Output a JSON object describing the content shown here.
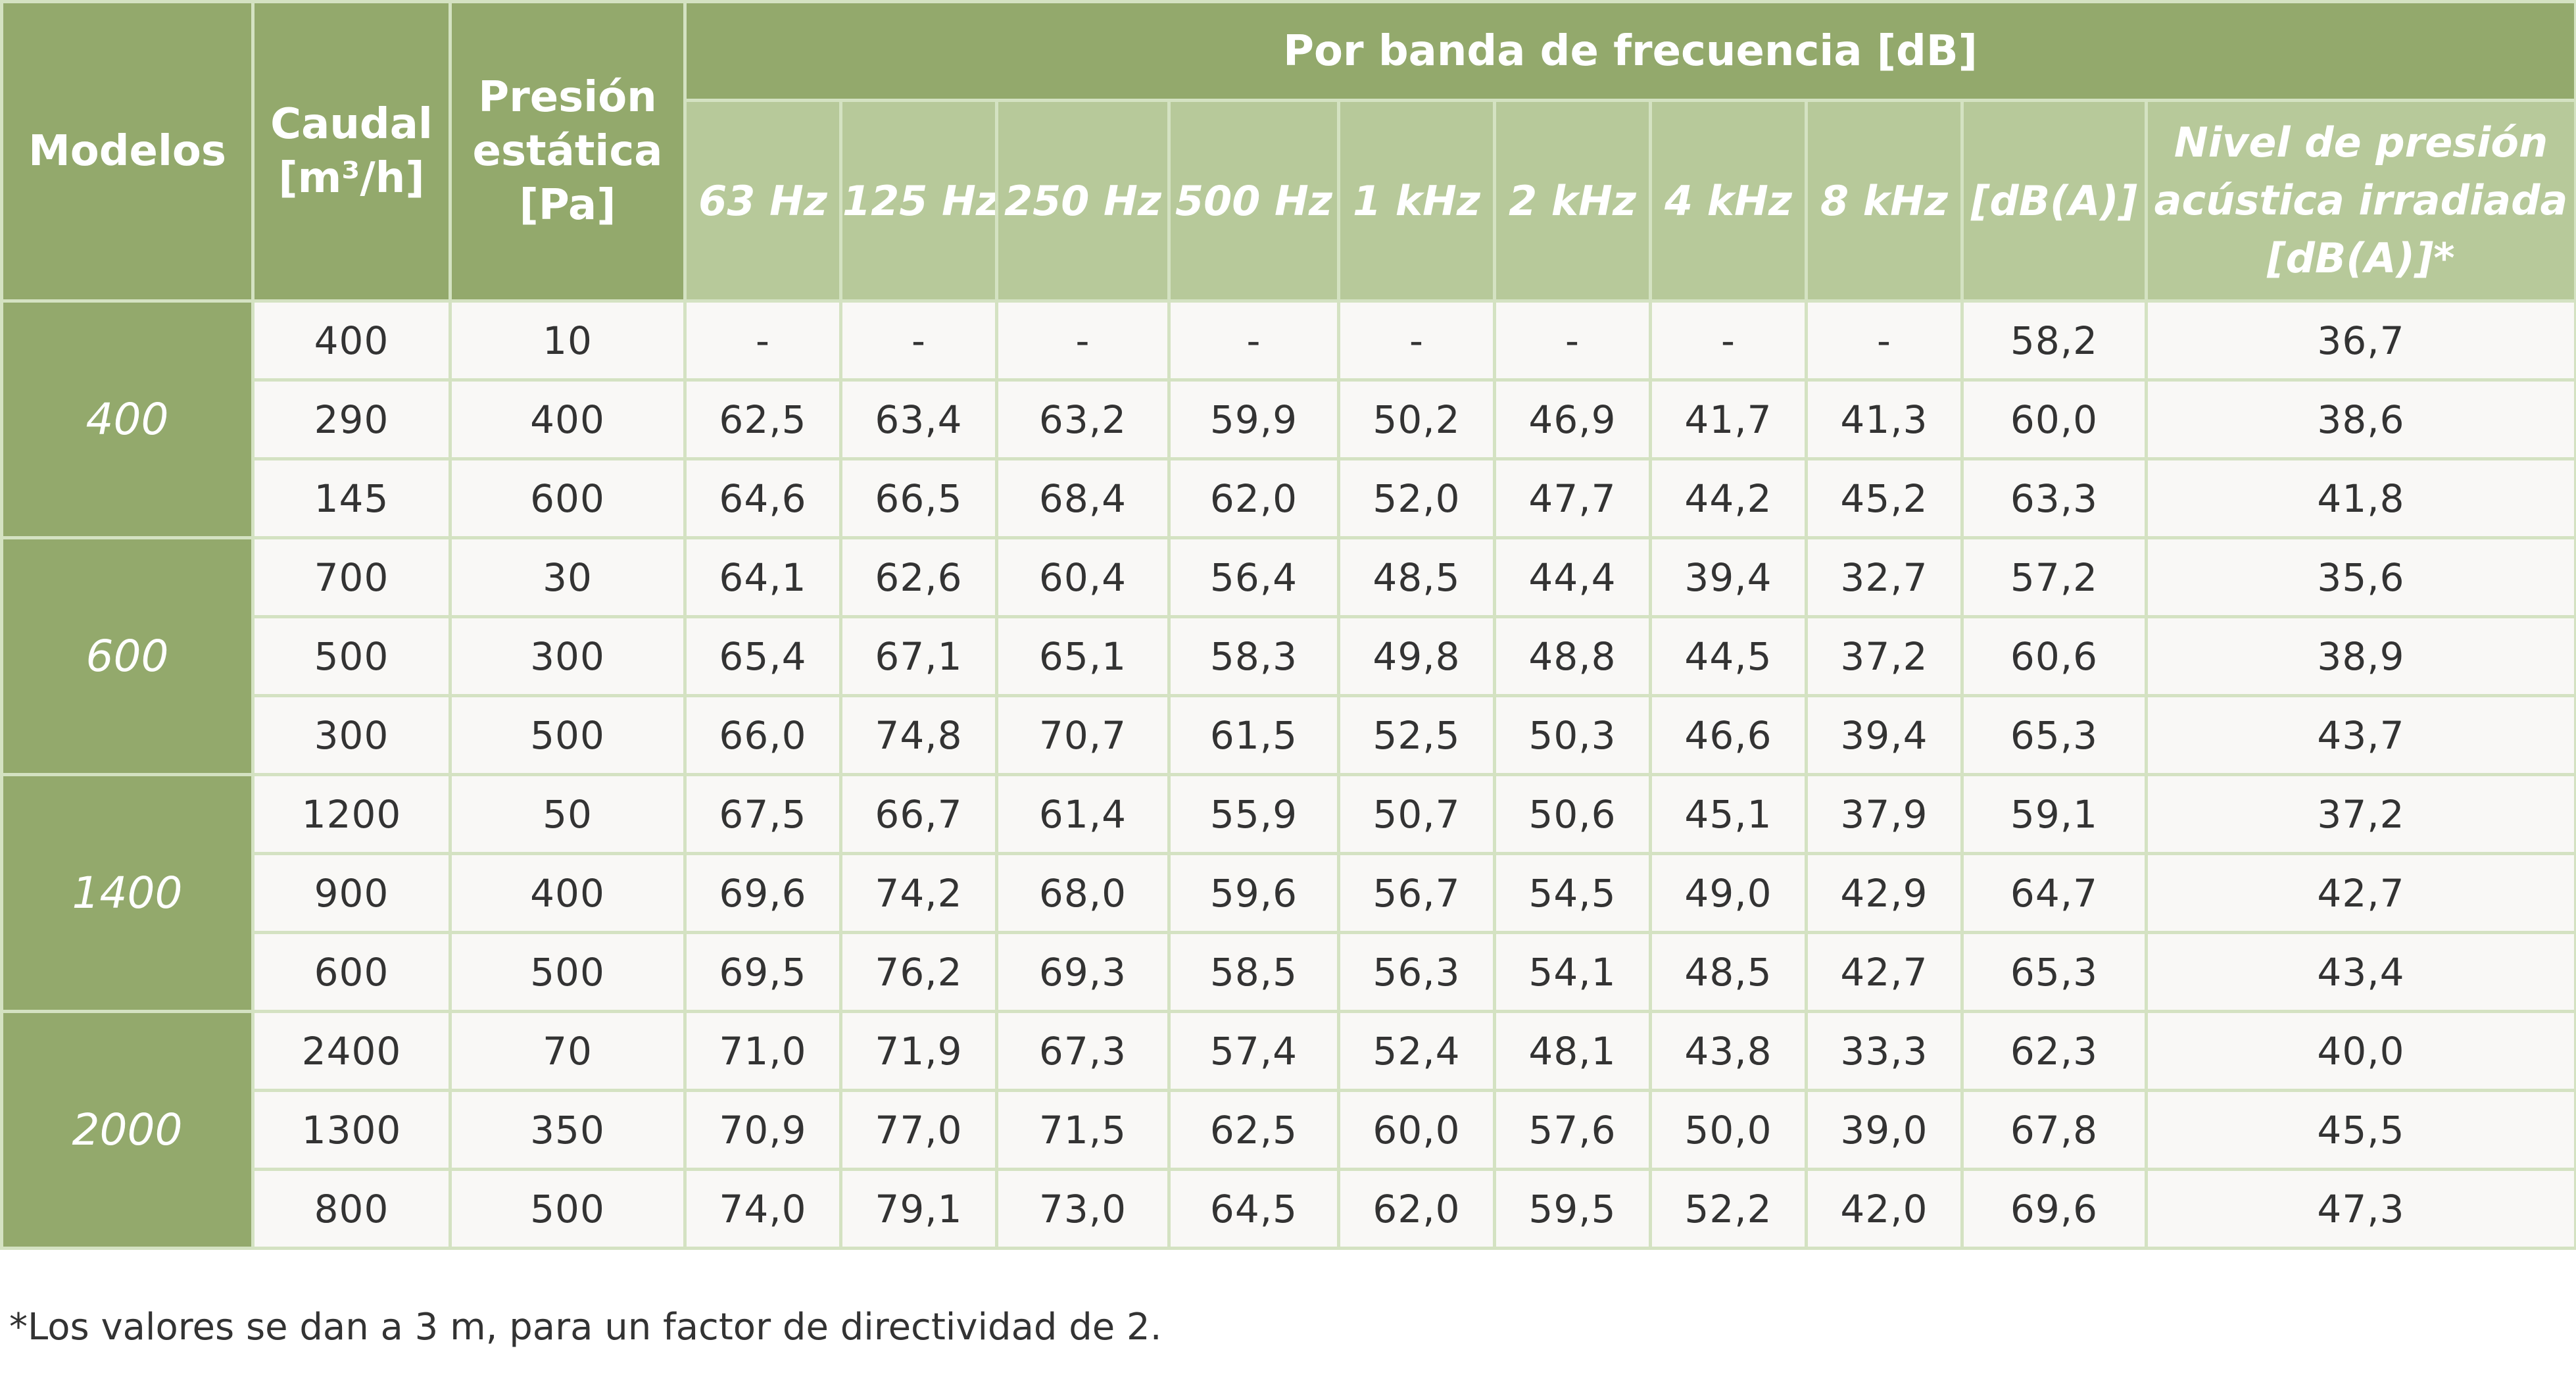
{
  "header": {
    "modelos": "Modelos",
    "caudal": [
      "Caudal",
      "[m³/h]"
    ],
    "presion": [
      "Presión",
      "estática",
      "[Pa]"
    ],
    "banda": "Por banda de frecuencia [dB]",
    "bands": [
      "63 Hz",
      "125 Hz",
      "250 Hz",
      "500 Hz",
      "1 kHz",
      "2 kHz",
      "4 kHz",
      "8 kHz",
      "[dB(A)]"
    ],
    "nivel": [
      "Nivel de presión",
      "acústica irradiada",
      "[dB(A)]*"
    ]
  },
  "groups": [
    {
      "model": "400",
      "rows": [
        {
          "caudal": "400",
          "presion": "10",
          "vals": [
            "-",
            "-",
            "-",
            "-",
            "-",
            "-",
            "-",
            "-",
            "58,2"
          ],
          "nivel": "36,7"
        },
        {
          "caudal": "290",
          "presion": "400",
          "vals": [
            "62,5",
            "63,4",
            "63,2",
            "59,9",
            "50,2",
            "46,9",
            "41,7",
            "41,3",
            "60,0"
          ],
          "nivel": "38,6"
        },
        {
          "caudal": "145",
          "presion": "600",
          "vals": [
            "64,6",
            "66,5",
            "68,4",
            "62,0",
            "52,0",
            "47,7",
            "44,2",
            "45,2",
            "63,3"
          ],
          "nivel": "41,8"
        }
      ]
    },
    {
      "model": "600",
      "rows": [
        {
          "caudal": "700",
          "presion": "30",
          "vals": [
            "64,1",
            "62,6",
            "60,4",
            "56,4",
            "48,5",
            "44,4",
            "39,4",
            "32,7",
            "57,2"
          ],
          "nivel": "35,6"
        },
        {
          "caudal": "500",
          "presion": "300",
          "vals": [
            "65,4",
            "67,1",
            "65,1",
            "58,3",
            "49,8",
            "48,8",
            "44,5",
            "37,2",
            "60,6"
          ],
          "nivel": "38,9"
        },
        {
          "caudal": "300",
          "presion": "500",
          "vals": [
            "66,0",
            "74,8",
            "70,7",
            "61,5",
            "52,5",
            "50,3",
            "46,6",
            "39,4",
            "65,3"
          ],
          "nivel": "43,7"
        }
      ]
    },
    {
      "model": "1400",
      "rows": [
        {
          "caudal": "1200",
          "presion": "50",
          "vals": [
            "67,5",
            "66,7",
            "61,4",
            "55,9",
            "50,7",
            "50,6",
            "45,1",
            "37,9",
            "59,1"
          ],
          "nivel": "37,2"
        },
        {
          "caudal": "900",
          "presion": "400",
          "vals": [
            "69,6",
            "74,2",
            "68,0",
            "59,6",
            "56,7",
            "54,5",
            "49,0",
            "42,9",
            "64,7"
          ],
          "nivel": "42,7"
        },
        {
          "caudal": "600",
          "presion": "500",
          "vals": [
            "69,5",
            "76,2",
            "69,3",
            "58,5",
            "56,3",
            "54,1",
            "48,5",
            "42,7",
            "65,3"
          ],
          "nivel": "43,4"
        }
      ]
    },
    {
      "model": "2000",
      "rows": [
        {
          "caudal": "2400",
          "presion": "70",
          "vals": [
            "71,0",
            "71,9",
            "67,3",
            "57,4",
            "52,4",
            "48,1",
            "43,8",
            "33,3",
            "62,3"
          ],
          "nivel": "40,0"
        },
        {
          "caudal": "1300",
          "presion": "350",
          "vals": [
            "70,9",
            "77,0",
            "71,5",
            "62,5",
            "60,0",
            "57,6",
            "50,0",
            "39,0",
            "67,8"
          ],
          "nivel": "45,5"
        },
        {
          "caudal": "800",
          "presion": "500",
          "vals": [
            "74,0",
            "79,1",
            "73,0",
            "64,5",
            "62,0",
            "59,5",
            "52,2",
            "42,0",
            "69,6"
          ],
          "nivel": "47,3"
        }
      ]
    }
  ],
  "footnote": "*Los valores se dan a 3 m, para un factor de directividad de 2."
}
